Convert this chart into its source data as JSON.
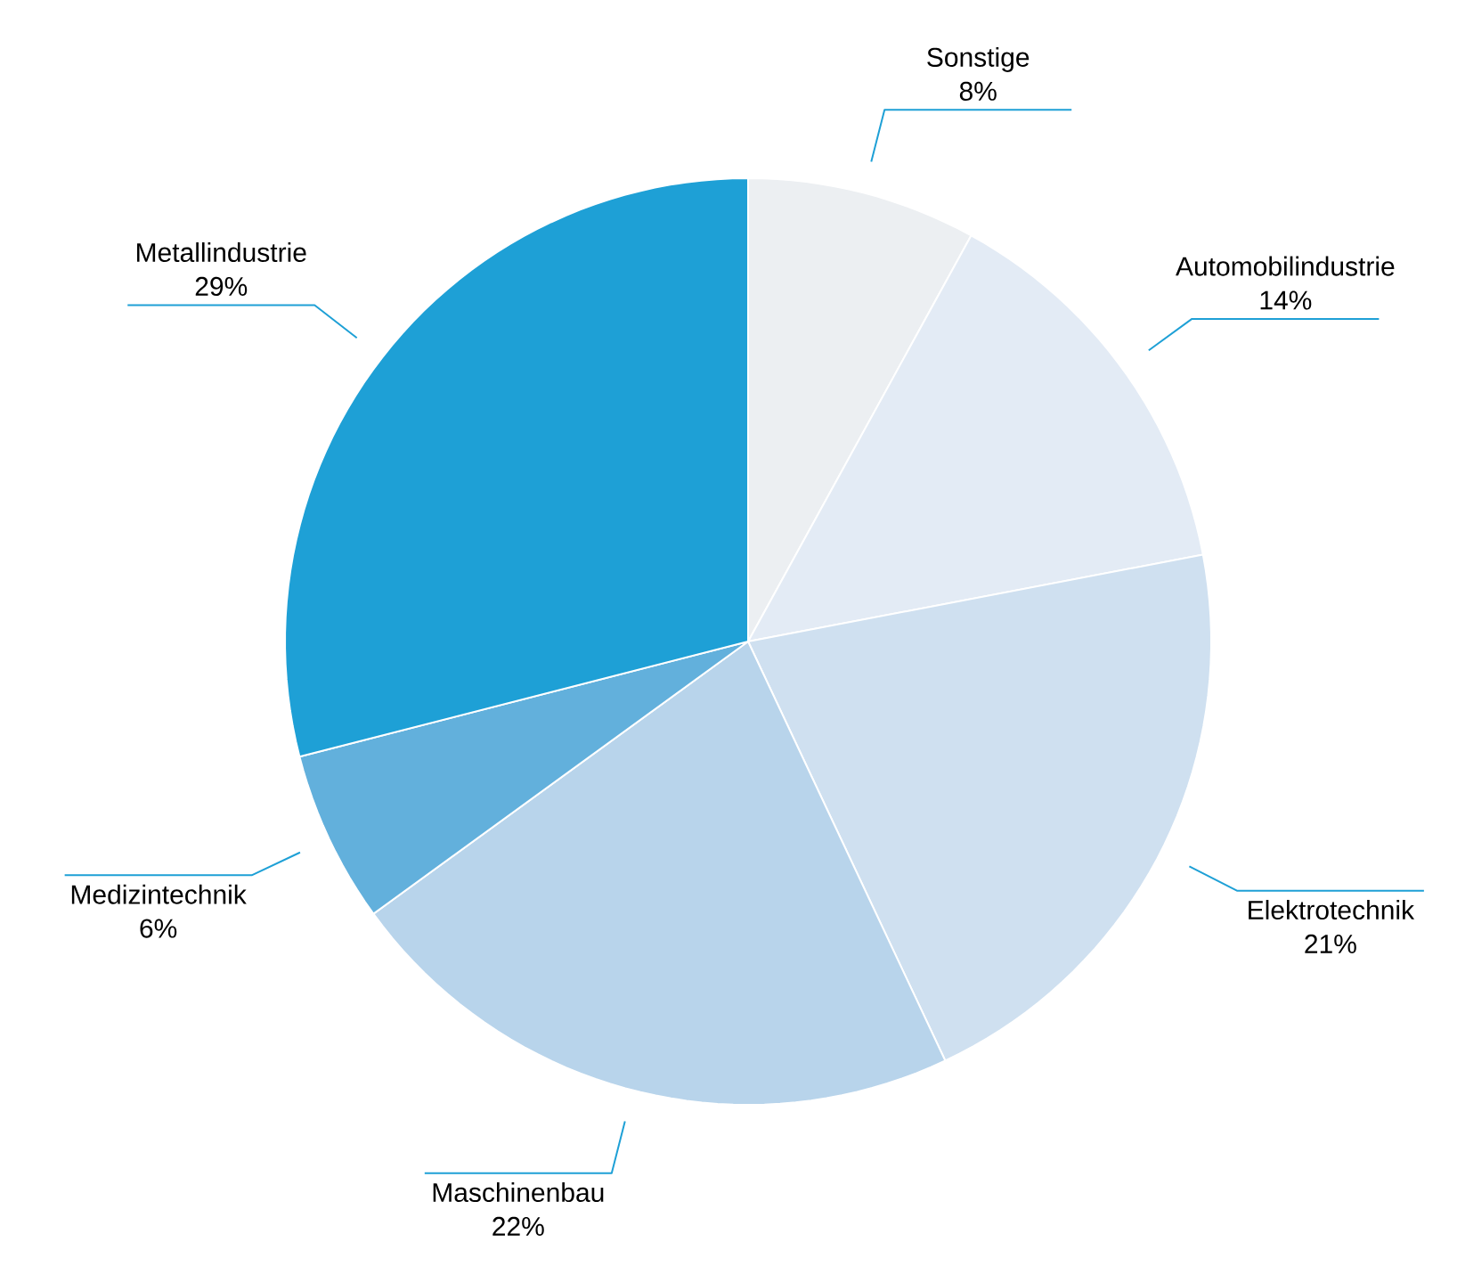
{
  "chart_data": {
    "type": "pie",
    "categories": [
      "Sonstige",
      "Automobilindustrie",
      "Elektrotechnik",
      "Maschinenbau",
      "Medizintechnik",
      "Metallindustrie"
    ],
    "values": [
      8,
      14,
      21,
      22,
      6,
      29
    ],
    "value_labels": [
      "8%",
      "14%",
      "21%",
      "22%",
      "6%",
      "29%"
    ],
    "colors": [
      "#eceff2",
      "#e3ebf5",
      "#cfe0f0",
      "#b8d4eb",
      "#62b0dc",
      "#1ea0d6"
    ]
  }
}
